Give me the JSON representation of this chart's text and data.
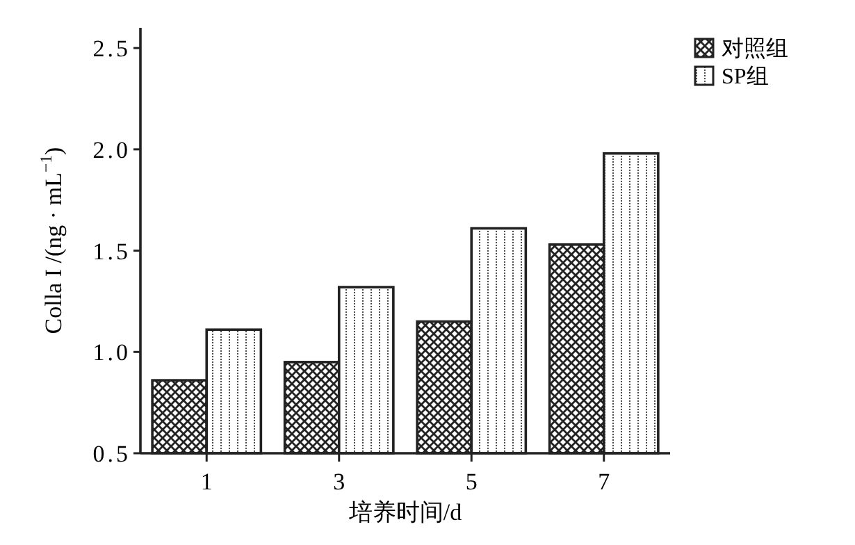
{
  "chart_data": {
    "type": "bar",
    "xlabel": "培养时间/d",
    "ylabel": "Colla I /(ng · mL$^{−1}$)",
    "categories": [
      "1",
      "3",
      "5",
      "7"
    ],
    "series": [
      {
        "name": "对照组",
        "color": "#222222",
        "values": [
          0.86,
          0.95,
          1.15,
          1.53
        ]
      },
      {
        "name": "SP组",
        "color": "#222222",
        "values": [
          1.11,
          1.32,
          1.61,
          1.98
        ]
      }
    ],
    "ylim": [
      0.5,
      2.6
    ],
    "yticks": [
      0.5,
      {
        "value": 1,
        "label": "1.0"
      },
      1.5,
      {
        "value": 2,
        "label": "2.0"
      },
      2.5
    ],
    "legend": "top right",
    "grid": false
  }
}
